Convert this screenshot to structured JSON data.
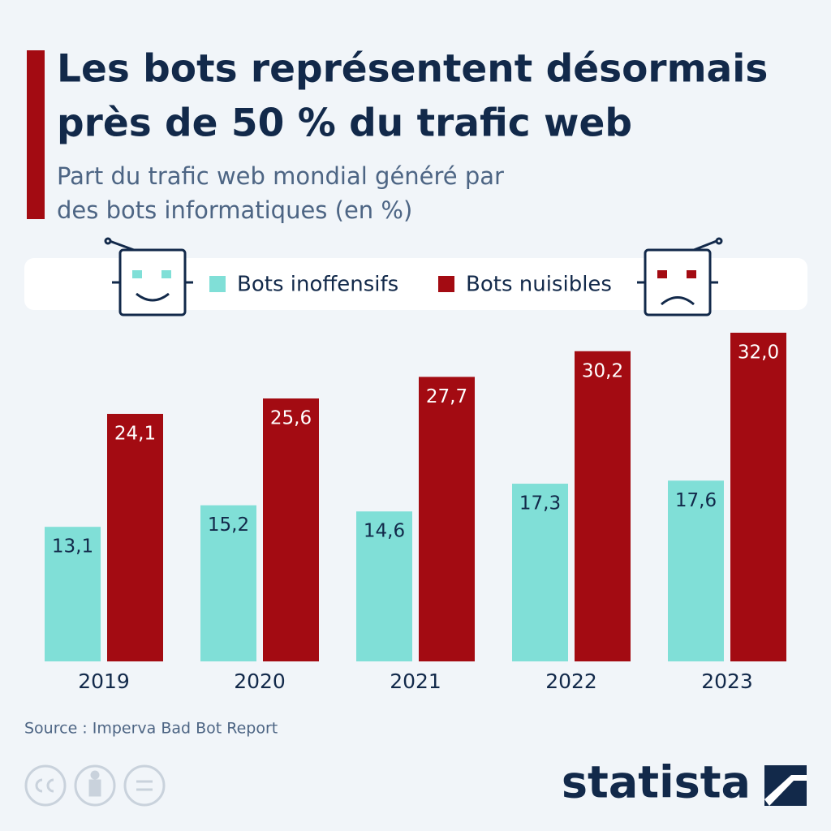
{
  "chart_data": {
    "type": "bar",
    "title": [
      "Les bots représentent désormais",
      "près de 50 % du trafic web"
    ],
    "subtitle": [
      "Part du trafic web mondial généré par",
      "des bots informatiques (en %)"
    ],
    "categories": [
      "2019",
      "2020",
      "2021",
      "2022",
      "2023"
    ],
    "series": [
      {
        "name": "Bots inoffensifs",
        "color": "#80dfd7",
        "values": [
          13.1,
          15.2,
          14.6,
          17.3,
          17.6
        ],
        "value_labels": [
          "13,1",
          "15,2",
          "14,6",
          "17,3",
          "17,6"
        ]
      },
      {
        "name": "Bots nuisibles",
        "color": "#a30b12",
        "values": [
          24.1,
          25.6,
          27.7,
          30.2,
          32.0
        ],
        "value_labels": [
          "24,1",
          "25,6",
          "27,7",
          "30,2",
          "32,0"
        ]
      }
    ],
    "source": "Source : Imperva Bad Bot Report",
    "logo": "statista"
  }
}
